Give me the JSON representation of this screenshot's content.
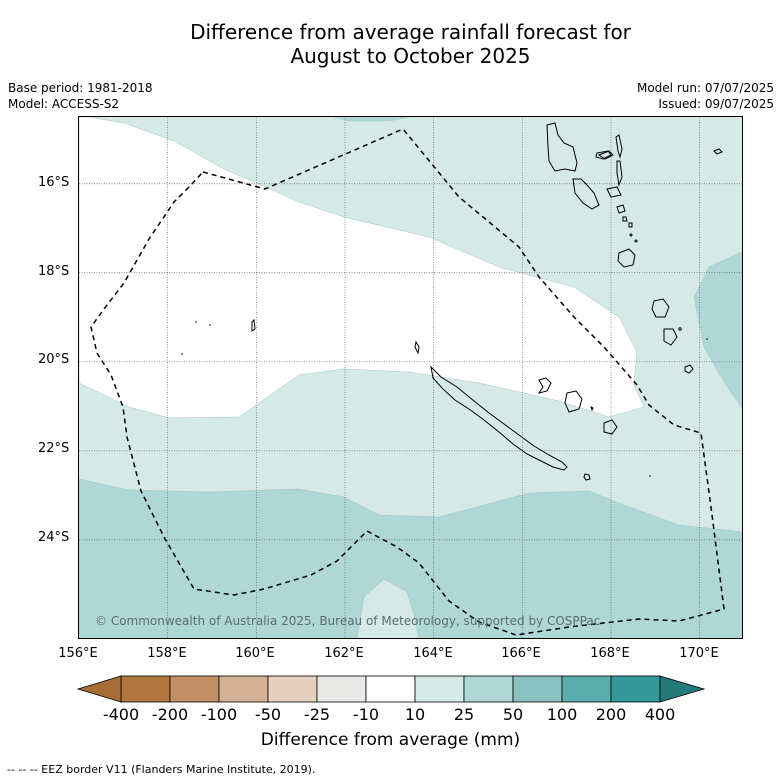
{
  "title": {
    "line1": "Difference from average rainfall forecast for",
    "line2": "August to October 2025"
  },
  "meta": {
    "base_period": "Base period: 1981-2018",
    "model": "Model: ACCESS-S2",
    "model_run": "Model run: 07/07/2025",
    "issued": "Issued: 09/07/2025"
  },
  "map": {
    "lon_range": [
      156,
      171
    ],
    "lat_range": [
      -26.25,
      -14.5
    ],
    "x_ticks": [
      "156°E",
      "158°E",
      "160°E",
      "162°E",
      "164°E",
      "166°E",
      "168°E",
      "170°E"
    ],
    "y_ticks": [
      "16°S",
      "18°S",
      "20°S",
      "22°S",
      "24°S"
    ],
    "copyright": "© Commonwealth of Australia 2025, Bureau of Meteorology, supported by COSPPac",
    "features": [
      "New Caledonia",
      "Loyalty Islands",
      "Vanuatu",
      "Chesterfield Islands",
      "EEZ border"
    ]
  },
  "colorbar": {
    "ticks": [
      "-400",
      "-200",
      "-100",
      "-50",
      "-25",
      "-10",
      "10",
      "25",
      "50",
      "100",
      "200",
      "400"
    ],
    "colors": {
      "below_min": "#a76d35",
      "b1": "#b0783f",
      "b2": "#c19166",
      "b3": "#d3b194",
      "b4": "#e5d1bf",
      "b5": "#e9e9e7",
      "b6": "#ffffff",
      "b7": "#d5e9e7",
      "b8": "#aed7d6",
      "b9": "#8bc1c0",
      "b10": "#5aadad",
      "b11": "#35989a",
      "above_max": "#237a78"
    },
    "label": "Difference from average (mm)"
  },
  "footer": "-- -- -- EEZ border V11 (Flanders Marine Institute, 2019)."
}
